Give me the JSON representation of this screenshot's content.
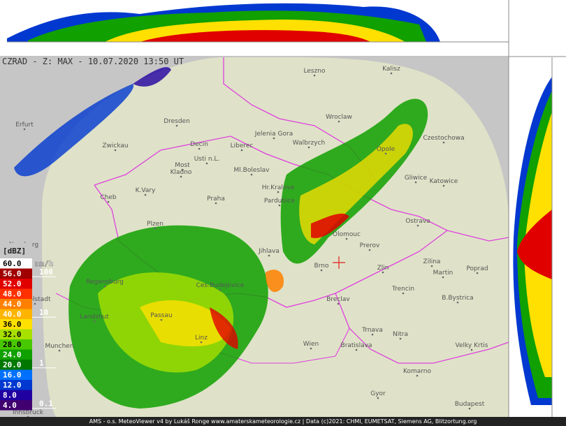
{
  "title": "CZRAD - Z: MAX - 10.07.2020 13:50 UT",
  "legend": {
    "unit": "[dBZ]",
    "rate_unit": "mm/h",
    "levels": [
      {
        "label": "60.0",
        "color": "#ffffff"
      },
      {
        "label": "56.0",
        "color": "#a00000"
      },
      {
        "label": "52.0",
        "color": "#e00000"
      },
      {
        "label": "48.0",
        "color": "#ff3000"
      },
      {
        "label": "44.0",
        "color": "#ff8000"
      },
      {
        "label": "40.0",
        "color": "#ffb400"
      },
      {
        "label": "36.0",
        "color": "#ffe000"
      },
      {
        "label": "32.0",
        "color": "#a8e000"
      },
      {
        "label": "28.0",
        "color": "#48c800"
      },
      {
        "label": "24.0",
        "color": "#10a000"
      },
      {
        "label": "20.0",
        "color": "#007800"
      },
      {
        "label": "16.0",
        "color": "#0070ff"
      },
      {
        "label": "12.0",
        "color": "#0038d0"
      },
      {
        "label": "8.0",
        "color": "#2000a0"
      },
      {
        "label": "4.0",
        "color": "#400070"
      }
    ],
    "rates": [
      "100",
      "10",
      "1",
      "0.1"
    ]
  },
  "cities": [
    "Leszno",
    "Kalisz",
    "Erfurt",
    "Dresden",
    "Wroclaw",
    "Czestochowa",
    "Zwickau",
    "Jelenia Gora",
    "Walbrzych",
    "Opole",
    "Gliwice",
    "Katowice",
    "Usti n.L.",
    "Most",
    "Liberec",
    "Ml.Boleslav",
    "Decin",
    "Kladno",
    "K.Vary",
    "Cheb",
    "Hr.Kralove",
    "Pardubice",
    "Praha",
    "Ostrava",
    "Plzen",
    "Olomouc",
    "Prerov",
    "Jihlava",
    "Nurnberg",
    "Zilina",
    "Zlin",
    "Brno",
    "Martin",
    "Poprad",
    "Ces.Budejovice",
    "Trencin",
    "Regensburg",
    "Ingolstadt",
    "B.Bystrica",
    "Breclav",
    "Passau",
    "Landshut",
    "Trnava",
    "Nitra",
    "Linz",
    "Wien",
    "Bratislava",
    "Velky Krtis",
    "Munchen",
    "Komarno",
    "Gyor",
    "Budapest",
    "Innsbruck"
  ],
  "footer": "AMS - o.s. MeteoViewer v4 by Lukáš Ronge www.amaterskameteorologie.cz | Data (c)2021: CHMI, EUMETSAT, Siemens AG, Blitzortung.org"
}
